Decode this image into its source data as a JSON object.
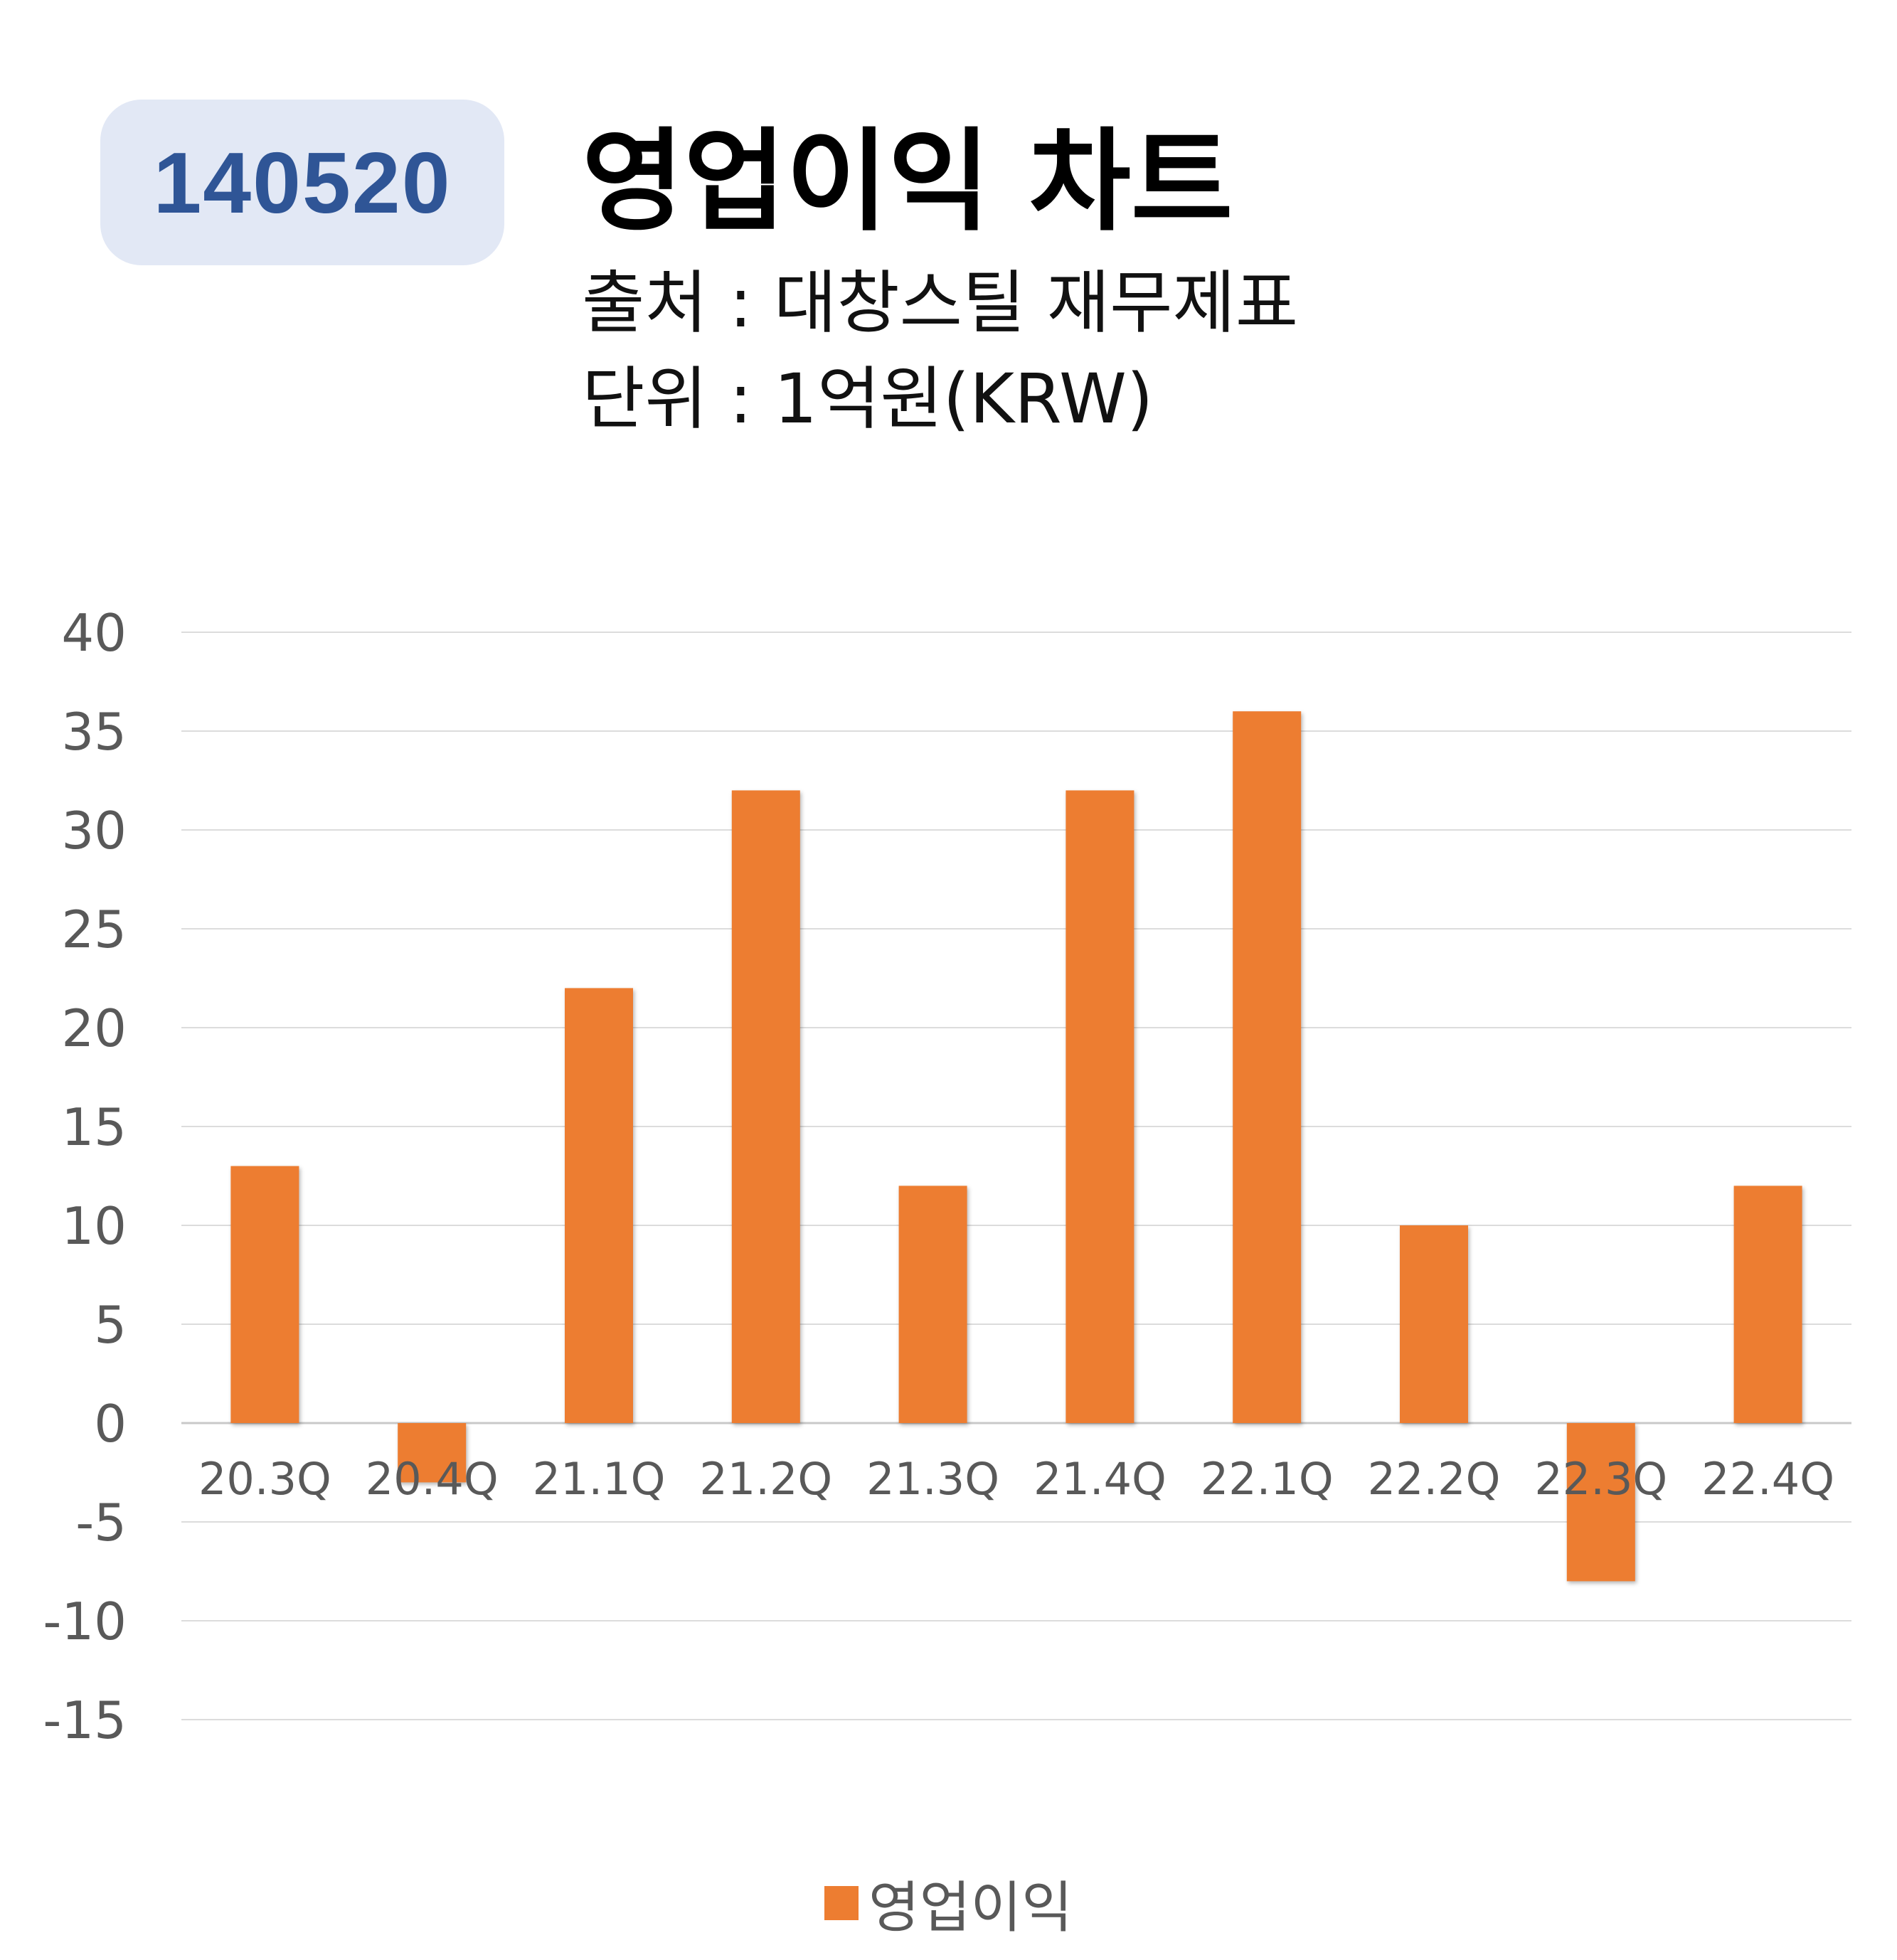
{
  "header": {
    "code": "140520",
    "title": "영업이익 차트",
    "source_line": "출처 : 대창스틸 재무제표",
    "unit_line": "단위 : 1억원(KRW)"
  },
  "chart_data": {
    "type": "bar",
    "categories": [
      "20.3Q",
      "20.4Q",
      "21.1Q",
      "21.2Q",
      "21.3Q",
      "21.4Q",
      "22.1Q",
      "22.2Q",
      "22.3Q",
      "22.4Q"
    ],
    "series": [
      {
        "name": "영업이익",
        "values": [
          13,
          -3,
          22,
          32,
          12,
          32,
          36,
          10,
          -8,
          12
        ],
        "color": "#ed7d31"
      }
    ],
    "ylim": [
      -15,
      40
    ],
    "yticks": [
      40,
      35,
      30,
      25,
      20,
      15,
      10,
      5,
      0,
      -5,
      -10,
      -15
    ],
    "grid": true,
    "legend": "bottom"
  }
}
